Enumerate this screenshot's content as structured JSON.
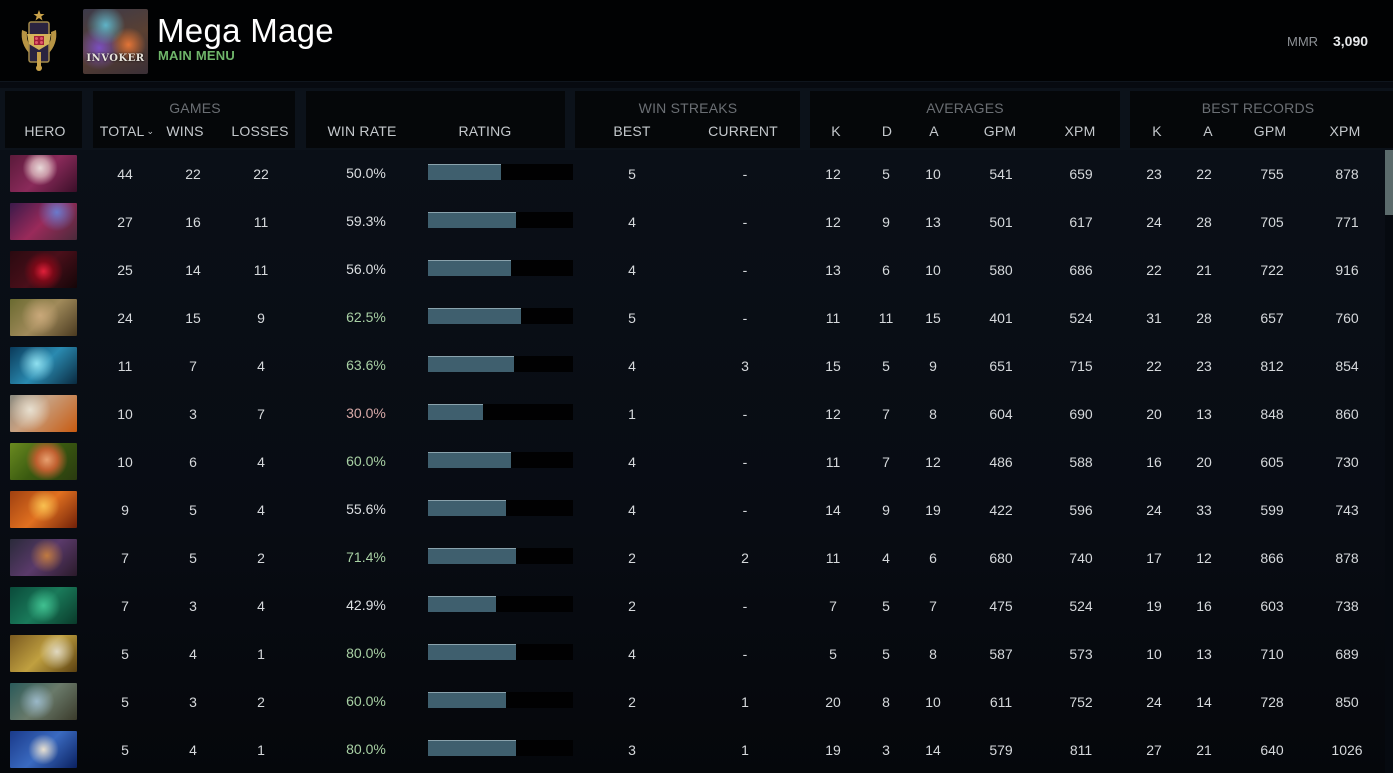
{
  "profile": {
    "name": "Mega Mage",
    "subtitle": "MAIN MENU",
    "featured_hero_label": "INVOKER",
    "rank_icon": "rank-medal-icon",
    "mmr_label": "MMR",
    "mmr_value": "3,090"
  },
  "colors": {
    "subtitle_green": "#6fb56a",
    "winrate_high": "#a8d0a4",
    "winrate_neutral": "#dcdfe2",
    "winrate_low": "#d8aaa8",
    "bar_fill": "#3f5f6e",
    "bar_track": "#010102"
  },
  "columns": {
    "hero": "HERO",
    "groups": {
      "games": "GAMES",
      "win_streaks": "WIN STREAKS",
      "averages": "AVERAGES",
      "best_records": "BEST RECORDS"
    },
    "total": "TOTAL",
    "total_sort_icon": "chevron-down-icon",
    "wins": "WINS",
    "losses": "LOSSES",
    "win_rate": "WIN RATE",
    "rating": "RATING",
    "streak_best": "BEST",
    "streak_current": "CURRENT",
    "avg_k": "K",
    "avg_d": "D",
    "avg_a": "A",
    "avg_gpm": "GPM",
    "avg_xpm": "XPM",
    "best_k": "K",
    "best_a": "A",
    "best_gpm": "GPM",
    "best_xpm": "XPM"
  },
  "rows": [
    {
      "hero_icon": "invoker-portrait",
      "total": "44",
      "wins": "22",
      "losses": "22",
      "win_rate": "50.0%",
      "rating_pct": 50,
      "streak_best": "5",
      "streak_current": "-",
      "avg_k": "12",
      "avg_d": "5",
      "avg_a": "10",
      "avg_gpm": "541",
      "avg_xpm": "659",
      "best_k": "23",
      "best_a": "22",
      "best_gpm": "755",
      "best_xpm": "878"
    },
    {
      "hero_icon": "queen-of-pain-portrait",
      "total": "27",
      "wins": "16",
      "losses": "11",
      "win_rate": "59.3%",
      "rating_pct": 61,
      "streak_best": "4",
      "streak_current": "-",
      "avg_k": "12",
      "avg_d": "9",
      "avg_a": "13",
      "avg_gpm": "501",
      "avg_xpm": "617",
      "best_k": "24",
      "best_a": "28",
      "best_gpm": "705",
      "best_xpm": "771"
    },
    {
      "hero_icon": "shadow-fiend-portrait",
      "total": "25",
      "wins": "14",
      "losses": "11",
      "win_rate": "56.0%",
      "rating_pct": 57,
      "streak_best": "4",
      "streak_current": "-",
      "avg_k": "13",
      "avg_d": "6",
      "avg_a": "10",
      "avg_gpm": "580",
      "avg_xpm": "686",
      "best_k": "22",
      "best_a": "21",
      "best_gpm": "722",
      "best_xpm": "916"
    },
    {
      "hero_icon": "pudge-portrait",
      "total": "24",
      "wins": "15",
      "losses": "9",
      "win_rate": "62.5%",
      "rating_pct": 64,
      "streak_best": "5",
      "streak_current": "-",
      "avg_k": "11",
      "avg_d": "11",
      "avg_a": "15",
      "avg_gpm": "401",
      "avg_xpm": "524",
      "best_k": "31",
      "best_a": "28",
      "best_gpm": "657",
      "best_xpm": "760"
    },
    {
      "hero_icon": "morphling-portrait",
      "total": "11",
      "wins": "7",
      "losses": "4",
      "win_rate": "63.6%",
      "rating_pct": 59,
      "streak_best": "4",
      "streak_current": "3",
      "avg_k": "15",
      "avg_d": "5",
      "avg_a": "9",
      "avg_gpm": "651",
      "avg_xpm": "715",
      "best_k": "22",
      "best_a": "23",
      "best_gpm": "812",
      "best_xpm": "854"
    },
    {
      "hero_icon": "sniper-portrait",
      "total": "10",
      "wins": "3",
      "losses": "7",
      "win_rate": "30.0%",
      "rating_pct": 38,
      "streak_best": "1",
      "streak_current": "-",
      "avg_k": "12",
      "avg_d": "7",
      "avg_a": "8",
      "avg_gpm": "604",
      "avg_xpm": "690",
      "best_k": "20",
      "best_a": "13",
      "best_gpm": "848",
      "best_xpm": "860"
    },
    {
      "hero_icon": "windranger-portrait",
      "total": "10",
      "wins": "6",
      "losses": "4",
      "win_rate": "60.0%",
      "rating_pct": 57,
      "streak_best": "4",
      "streak_current": "-",
      "avg_k": "11",
      "avg_d": "7",
      "avg_a": "12",
      "avg_gpm": "486",
      "avg_xpm": "588",
      "best_k": "16",
      "best_a": "20",
      "best_gpm": "605",
      "best_xpm": "730"
    },
    {
      "hero_icon": "phoenix-portrait",
      "total": "9",
      "wins": "5",
      "losses": "4",
      "win_rate": "55.6%",
      "rating_pct": 54,
      "streak_best": "4",
      "streak_current": "-",
      "avg_k": "14",
      "avg_d": "9",
      "avg_a": "19",
      "avg_gpm": "422",
      "avg_xpm": "596",
      "best_k": "24",
      "best_a": "33",
      "best_gpm": "599",
      "best_xpm": "743"
    },
    {
      "hero_icon": "anti-mage-portrait",
      "total": "7",
      "wins": "5",
      "losses": "2",
      "win_rate": "71.4%",
      "rating_pct": 61,
      "streak_best": "2",
      "streak_current": "2",
      "avg_k": "11",
      "avg_d": "4",
      "avg_a": "6",
      "avg_gpm": "680",
      "avg_xpm": "740",
      "best_k": "17",
      "best_a": "12",
      "best_gpm": "866",
      "best_xpm": "878"
    },
    {
      "hero_icon": "underlord-portrait",
      "total": "7",
      "wins": "3",
      "losses": "4",
      "win_rate": "42.9%",
      "rating_pct": 47,
      "streak_best": "2",
      "streak_current": "-",
      "avg_k": "7",
      "avg_d": "5",
      "avg_a": "7",
      "avg_gpm": "475",
      "avg_xpm": "524",
      "best_k": "19",
      "best_a": "16",
      "best_gpm": "603",
      "best_xpm": "738"
    },
    {
      "hero_icon": "sniper-alt-portrait",
      "total": "5",
      "wins": "4",
      "losses": "1",
      "win_rate": "80.0%",
      "rating_pct": 61,
      "streak_best": "4",
      "streak_current": "-",
      "avg_k": "5",
      "avg_d": "5",
      "avg_a": "8",
      "avg_gpm": "587",
      "avg_xpm": "573",
      "best_k": "10",
      "best_a": "13",
      "best_gpm": "710",
      "best_xpm": "689"
    },
    {
      "hero_icon": "slark-portrait",
      "total": "5",
      "wins": "3",
      "losses": "2",
      "win_rate": "60.0%",
      "rating_pct": 54,
      "streak_best": "2",
      "streak_current": "1",
      "avg_k": "20",
      "avg_d": "8",
      "avg_a": "10",
      "avg_gpm": "611",
      "avg_xpm": "752",
      "best_k": "24",
      "best_a": "14",
      "best_gpm": "728",
      "best_xpm": "850"
    },
    {
      "hero_icon": "zeus-portrait",
      "total": "5",
      "wins": "4",
      "losses": "1",
      "win_rate": "80.0%",
      "rating_pct": 61,
      "streak_best": "3",
      "streak_current": "1",
      "avg_k": "19",
      "avg_d": "3",
      "avg_a": "14",
      "avg_gpm": "579",
      "avg_xpm": "811",
      "best_k": "27",
      "best_a": "21",
      "best_gpm": "640",
      "best_xpm": "1026"
    }
  ],
  "scrollbar": {
    "thumb_position_pct": 0
  }
}
